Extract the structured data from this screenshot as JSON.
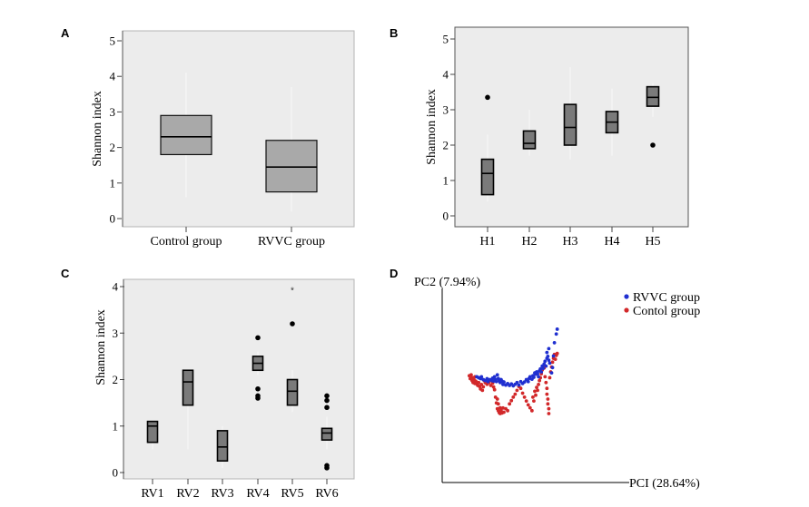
{
  "panels": {
    "A": {
      "letter": "A"
    },
    "B": {
      "letter": "B"
    },
    "C": {
      "letter": "C"
    },
    "D": {
      "letter": "D"
    }
  },
  "chart_data": [
    {
      "panel": "A",
      "type": "box",
      "xlabel": "",
      "ylabel": "Shannon index",
      "ylim": [
        0,
        5
      ],
      "yticks": [
        0,
        1,
        2,
        3,
        4,
        5
      ],
      "categories": [
        "Control group",
        "RVVC group"
      ],
      "boxes": [
        {
          "q1": 1.8,
          "median": 2.3,
          "q3": 2.9,
          "whisker_low": 0.6,
          "whisker_high": 4.1,
          "outliers": []
        },
        {
          "q1": 0.75,
          "median": 1.45,
          "q3": 2.2,
          "whisker_low": 0.2,
          "whisker_high": 3.7,
          "outliers": []
        }
      ],
      "box_color": "#a9a9a9",
      "background": "#ececec",
      "grid": false
    },
    {
      "panel": "B",
      "type": "box",
      "xlabel": "",
      "ylabel": "Shannon index",
      "ylim": [
        0,
        5
      ],
      "yticks": [
        0,
        1,
        2,
        3,
        4,
        5
      ],
      "categories": [
        "H1",
        "H2",
        "H3",
        "H4",
        "H5"
      ],
      "boxes": [
        {
          "q1": 0.6,
          "median": 1.2,
          "q3": 1.6,
          "whisker_low": 0.4,
          "whisker_high": 2.3,
          "outliers": [
            3.35
          ]
        },
        {
          "q1": 1.9,
          "median": 2.05,
          "q3": 2.4,
          "whisker_low": 1.7,
          "whisker_high": 3.0,
          "outliers": []
        },
        {
          "q1": 2.0,
          "median": 2.5,
          "q3": 3.15,
          "whisker_low": 1.6,
          "whisker_high": 4.2,
          "outliers": []
        },
        {
          "q1": 2.35,
          "median": 2.65,
          "q3": 2.95,
          "whisker_low": 1.7,
          "whisker_high": 3.6,
          "outliers": []
        },
        {
          "q1": 3.1,
          "median": 3.35,
          "q3": 3.65,
          "whisker_low": 2.8,
          "whisker_high": 3.75,
          "outliers": [
            2.0
          ]
        }
      ],
      "box_color": "#7a7a7a",
      "background": "#ececec",
      "grid": false
    },
    {
      "panel": "C",
      "type": "box",
      "xlabel": "",
      "ylabel": "Shannon index",
      "ylim": [
        0,
        4
      ],
      "yticks": [
        0,
        1,
        2,
        3,
        4
      ],
      "categories": [
        "RV1",
        "RV2",
        "RV3",
        "RV4",
        "RV5",
        "RV6"
      ],
      "boxes": [
        {
          "q1": 0.65,
          "median": 1.0,
          "q3": 1.1,
          "whisker_low": 0.5,
          "whisker_high": 1.1,
          "outliers": []
        },
        {
          "q1": 1.45,
          "median": 1.95,
          "q3": 2.2,
          "whisker_low": 0.5,
          "whisker_high": 2.2,
          "outliers": []
        },
        {
          "q1": 0.25,
          "median": 0.55,
          "q3": 0.9,
          "whisker_low": 0.1,
          "whisker_high": 1.0,
          "outliers": []
        },
        {
          "q1": 2.2,
          "median": 2.35,
          "q3": 2.5,
          "whisker_low": 2.1,
          "whisker_high": 2.6,
          "outliers": [
            2.9,
            1.8,
            1.65,
            1.6
          ]
        },
        {
          "q1": 1.45,
          "median": 1.75,
          "q3": 2.0,
          "whisker_low": 1.3,
          "whisker_high": 2.2,
          "outliers": [
            3.2
          ],
          "extremes": [
            3.95
          ]
        },
        {
          "q1": 0.7,
          "median": 0.85,
          "q3": 0.95,
          "whisker_low": 0.5,
          "whisker_high": 1.2,
          "outliers": [
            1.65,
            1.55,
            1.4,
            0.15,
            0.1
          ]
        }
      ],
      "extreme_symbol": "*",
      "box_color": "#7a7a7a",
      "background": "#ececec",
      "grid": false
    },
    {
      "panel": "D",
      "type": "scatter",
      "xlabel": "PCI (28.64%)",
      "ylabel": "PC2 (7.94%)",
      "xlim": [
        0,
        100
      ],
      "ylim": [
        0,
        100
      ],
      "legend_position": "top-right",
      "series": [
        {
          "name": "RVVC group",
          "color": "#1f2fd0",
          "points": [
            [
              18.5,
              54.5
            ],
            [
              19.5,
              54
            ],
            [
              20.5,
              53.5
            ],
            [
              21,
              54.5
            ],
            [
              22,
              53
            ],
            [
              23,
              52.5
            ],
            [
              24,
              53.5
            ],
            [
              24.5,
              52
            ],
            [
              25.5,
              53
            ],
            [
              26.5,
              52.5
            ],
            [
              27,
              53.8
            ],
            [
              27.5,
              52.2
            ],
            [
              28,
              54.5
            ],
            [
              28.5,
              53
            ],
            [
              29,
              52
            ],
            [
              29.5,
              55.5
            ],
            [
              30,
              53.6
            ],
            [
              30.5,
              52.4
            ],
            [
              31,
              51.5
            ],
            [
              31.5,
              53
            ],
            [
              32,
              52.2
            ],
            [
              32.5,
              50.5
            ],
            [
              33,
              51.8
            ],
            [
              34,
              50.2
            ],
            [
              35,
              51
            ],
            [
              36,
              50
            ],
            [
              37,
              50.8
            ],
            [
              38,
              49.8
            ],
            [
              39,
              50.6
            ],
            [
              40,
              51.5
            ],
            [
              41,
              50.2
            ],
            [
              42,
              52
            ],
            [
              43,
              51
            ],
            [
              44,
              51.8
            ],
            [
              45,
              53
            ],
            [
              46,
              52
            ],
            [
              46.5,
              53.6
            ],
            [
              47,
              54.5
            ],
            [
              48,
              53.2
            ],
            [
              48.5,
              55
            ],
            [
              49,
              54.2
            ],
            [
              49.5,
              56.5
            ],
            [
              50,
              55.8
            ],
            [
              50.5,
              57
            ],
            [
              51,
              56
            ],
            [
              51.5,
              54.5
            ],
            [
              52,
              57.5
            ],
            [
              52.5,
              58.5
            ],
            [
              53,
              57
            ],
            [
              53.5,
              60
            ],
            [
              54,
              58.8
            ],
            [
              54.5,
              61
            ],
            [
              55,
              62.5
            ],
            [
              55.5,
              60
            ],
            [
              56,
              64
            ],
            [
              56,
              67
            ],
            [
              56.5,
              65
            ],
            [
              57,
              63
            ],
            [
              57,
              69
            ],
            [
              57.5,
              61.5
            ],
            [
              58.5,
              56.5
            ],
            [
              59,
              59.2
            ],
            [
              59.5,
              65.2
            ],
            [
              60,
              72
            ],
            [
              61,
              76.5
            ],
            [
              61.5,
              79
            ]
          ]
        },
        {
          "name": "Contol group",
          "color": "#d2282a",
          "points": [
            [
              14.5,
              55
            ],
            [
              15,
              53.5
            ],
            [
              15.5,
              55.5
            ],
            [
              16,
              54
            ],
            [
              16,
              52.5
            ],
            [
              16.5,
              51.5
            ],
            [
              17,
              53
            ],
            [
              17.5,
              54.5
            ],
            [
              17.5,
              51
            ],
            [
              18,
              52.2
            ],
            [
              18.5,
              50.8
            ],
            [
              19,
              50
            ],
            [
              19.5,
              51.5
            ],
            [
              20,
              49.5
            ],
            [
              20.5,
              48.2
            ],
            [
              21,
              50.5
            ],
            [
              21.5,
              47.5
            ],
            [
              22,
              49.3
            ],
            [
              22.5,
              52.5
            ],
            [
              23,
              51.4
            ],
            [
              24,
              50.6
            ],
            [
              25,
              51.5
            ],
            [
              26,
              50
            ],
            [
              27,
              51.2
            ],
            [
              27.5,
              49.2
            ],
            [
              28,
              47.8
            ],
            [
              28.5,
              44
            ],
            [
              29,
              41
            ],
            [
              29.5,
              43
            ],
            [
              29.5,
              38
            ],
            [
              30,
              40.5
            ],
            [
              30,
              37
            ],
            [
              30.5,
              36
            ],
            [
              31,
              38.5
            ],
            [
              31,
              35.5
            ],
            [
              31.5,
              37
            ],
            [
              32,
              35.8
            ],
            [
              32.5,
              38.4
            ],
            [
              33,
              36.2
            ],
            [
              34,
              38
            ],
            [
              35,
              37
            ],
            [
              36,
              40.5
            ],
            [
              37,
              42.2
            ],
            [
              38,
              44
            ],
            [
              39,
              45.5
            ],
            [
              40,
              47.5
            ],
            [
              41,
              49.5
            ],
            [
              42,
              48.5
            ],
            [
              43,
              46
            ],
            [
              44,
              44
            ],
            [
              45,
              42
            ],
            [
              46,
              40
            ],
            [
              47,
              38.5
            ],
            [
              48,
              37
            ],
            [
              48.5,
              44
            ],
            [
              49,
              42
            ],
            [
              49.5,
              47
            ],
            [
              50,
              45
            ],
            [
              50.5,
              49
            ],
            [
              51,
              47.5
            ],
            [
              51.5,
              50.5
            ],
            [
              52,
              52.5
            ],
            [
              52.5,
              54
            ],
            [
              53,
              56
            ],
            [
              53.5,
              58
            ],
            [
              54,
              60
            ],
            [
              54.5,
              59
            ],
            [
              55,
              54.5
            ],
            [
              55.5,
              51.5
            ],
            [
              56,
              48.5
            ],
            [
              56,
              45.5
            ],
            [
              56.5,
              43
            ],
            [
              56.5,
              40.5
            ],
            [
              57,
              38
            ],
            [
              57,
              35.5
            ],
            [
              57.5,
              54
            ],
            [
              58,
              57
            ],
            [
              58.5,
              59.5
            ],
            [
              59,
              62
            ],
            [
              59.5,
              64
            ],
            [
              60,
              66
            ],
            [
              60.5,
              63.5
            ],
            [
              61,
              65.5
            ],
            [
              61.5,
              66.5
            ]
          ]
        }
      ]
    }
  ]
}
